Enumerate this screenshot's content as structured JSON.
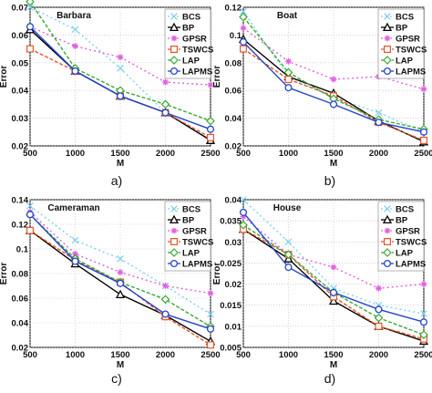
{
  "chart_data": [
    {
      "type": "line",
      "panel_label": "a)",
      "title": "Barbara",
      "xlabel": "M",
      "ylabel": "Error",
      "x": [
        500,
        1000,
        1500,
        2000,
        2500
      ],
      "xlim": [
        500,
        2500
      ],
      "ylim": [
        0.02,
        0.07
      ],
      "yticks": [
        "0.02",
        "0.03",
        "0.04",
        "0.05",
        "0.06",
        "0.07"
      ],
      "xticks": [
        "500",
        "1000",
        "1500",
        "2000",
        "2500"
      ],
      "grid": true,
      "legend_position": "top-right",
      "series": [
        {
          "name": "BCS",
          "color": "#7fd0ee",
          "dash": "2,3",
          "marker": "x",
          "values": [
            0.07,
            0.062,
            0.048,
            0.032,
            0.022
          ]
        },
        {
          "name": "BP",
          "color": "#000000",
          "dash": "",
          "marker": "triangle",
          "values": [
            0.062,
            0.047,
            0.038,
            0.032,
            0.022
          ]
        },
        {
          "name": "GPSR",
          "color": "#e060e0",
          "dash": "2,3",
          "marker": "star",
          "values": [
            0.063,
            0.056,
            0.052,
            0.043,
            0.042
          ]
        },
        {
          "name": "TSWCS",
          "color": "#e8552b",
          "dash": "4,2",
          "marker": "square",
          "values": [
            0.055,
            0.047,
            0.038,
            0.032,
            0.023
          ]
        },
        {
          "name": "LAP",
          "color": "#3aa832",
          "dash": "4,2",
          "marker": "diamond",
          "values": [
            0.072,
            0.048,
            0.04,
            0.035,
            0.029
          ]
        },
        {
          "name": "LAPMS",
          "color": "#2244cc",
          "dash": "",
          "marker": "circle",
          "values": [
            0.063,
            0.047,
            0.038,
            0.032,
            0.026
          ]
        }
      ]
    },
    {
      "type": "line",
      "panel_label": "b)",
      "title": "Boat",
      "xlabel": "M",
      "ylabel": "Error",
      "x": [
        500,
        1000,
        1500,
        2000,
        2500
      ],
      "xlim": [
        500,
        2500
      ],
      "ylim": [
        0.02,
        0.12
      ],
      "yticks": [
        "0.02",
        "0.04",
        "0.06",
        "0.08",
        "0.1",
        "0.12"
      ],
      "xticks": [
        "500",
        "1000",
        "1500",
        "2000",
        "2500"
      ],
      "grid": true,
      "legend_position": "top-right",
      "series": [
        {
          "name": "BCS",
          "color": "#7fd0ee",
          "dash": "2,3",
          "marker": "x",
          "values": [
            0.117,
            0.07,
            0.055,
            0.044,
            0.03
          ]
        },
        {
          "name": "BP",
          "color": "#000000",
          "dash": "",
          "marker": "triangle",
          "values": [
            0.097,
            0.07,
            0.058,
            0.038,
            0.023
          ]
        },
        {
          "name": "GPSR",
          "color": "#e060e0",
          "dash": "2,3",
          "marker": "star",
          "values": [
            0.105,
            0.081,
            0.068,
            0.07,
            0.061
          ]
        },
        {
          "name": "TSWCS",
          "color": "#e8552b",
          "dash": "4,2",
          "marker": "square",
          "values": [
            0.09,
            0.068,
            0.056,
            0.037,
            0.024
          ]
        },
        {
          "name": "LAP",
          "color": "#3aa832",
          "dash": "4,2",
          "marker": "diamond",
          "values": [
            0.113,
            0.073,
            0.054,
            0.039,
            0.032
          ]
        },
        {
          "name": "LAPMS",
          "color": "#2244cc",
          "dash": "",
          "marker": "circle",
          "values": [
            0.095,
            0.062,
            0.05,
            0.037,
            0.03
          ]
        }
      ]
    },
    {
      "type": "line",
      "panel_label": "c)",
      "title": "Cameraman",
      "xlabel": "M",
      "ylabel": "Error",
      "x": [
        500,
        1000,
        1500,
        2000,
        2500
      ],
      "xlim": [
        500,
        2500
      ],
      "ylim": [
        0.02,
        0.14
      ],
      "yticks": [
        "0.02",
        "0.04",
        "0.06",
        "0.08",
        "0.1",
        "0.12",
        "0.14"
      ],
      "xticks": [
        "500",
        "1000",
        "1500",
        "2000",
        "2500"
      ],
      "grid": true,
      "legend_position": "top-right",
      "series": [
        {
          "name": "BCS",
          "color": "#7fd0ee",
          "dash": "2,3",
          "marker": "x",
          "values": [
            0.135,
            0.107,
            0.092,
            0.07,
            0.047
          ]
        },
        {
          "name": "BP",
          "color": "#000000",
          "dash": "",
          "marker": "triangle",
          "values": [
            0.115,
            0.088,
            0.063,
            0.046,
            0.025
          ]
        },
        {
          "name": "GPSR",
          "color": "#e060e0",
          "dash": "2,3",
          "marker": "star",
          "values": [
            0.13,
            0.096,
            0.081,
            0.07,
            0.064
          ]
        },
        {
          "name": "TSWCS",
          "color": "#e8552b",
          "dash": "4,2",
          "marker": "square",
          "values": [
            0.115,
            0.091,
            0.073,
            0.045,
            0.022
          ]
        },
        {
          "name": "LAP",
          "color": "#3aa832",
          "dash": "4,2",
          "marker": "diamond",
          "values": [
            0.128,
            0.092,
            0.073,
            0.059,
            0.037
          ]
        },
        {
          "name": "LAPMS",
          "color": "#2244cc",
          "dash": "",
          "marker": "circle",
          "values": [
            0.128,
            0.09,
            0.072,
            0.047,
            0.035
          ]
        }
      ]
    },
    {
      "type": "line",
      "panel_label": "d)",
      "title": "House",
      "xlabel": "M",
      "ylabel": "Error",
      "x": [
        500,
        1000,
        1500,
        2000,
        2500
      ],
      "xlim": [
        500,
        2500
      ],
      "ylim": [
        0.005,
        0.04
      ],
      "yticks": [
        "0.005",
        "0.01",
        "0.015",
        "0.02",
        "0.025",
        "0.03",
        "0.035",
        "0.04"
      ],
      "xticks": [
        "500",
        "1000",
        "1500",
        "2000",
        "2500"
      ],
      "grid": true,
      "legend_position": "top-right",
      "series": [
        {
          "name": "BCS",
          "color": "#7fd0ee",
          "dash": "2,3",
          "marker": "x",
          "values": [
            0.04,
            0.03,
            0.019,
            0.015,
            0.013
          ]
        },
        {
          "name": "BP",
          "color": "#000000",
          "dash": "",
          "marker": "triangle",
          "values": [
            0.033,
            0.026,
            0.016,
            0.01,
            0.0065
          ]
        },
        {
          "name": "GPSR",
          "color": "#e060e0",
          "dash": "2,3",
          "marker": "star",
          "values": [
            0.036,
            0.027,
            0.024,
            0.019,
            0.02
          ]
        },
        {
          "name": "TSWCS",
          "color": "#e8552b",
          "dash": "4,2",
          "marker": "square",
          "values": [
            0.033,
            0.027,
            0.017,
            0.01,
            0.007
          ]
        },
        {
          "name": "LAP",
          "color": "#3aa832",
          "dash": "4,2",
          "marker": "diamond",
          "values": [
            0.034,
            0.027,
            0.018,
            0.012,
            0.008
          ]
        },
        {
          "name": "LAPMS",
          "color": "#2244cc",
          "dash": "",
          "marker": "circle",
          "values": [
            0.037,
            0.024,
            0.018,
            0.014,
            0.011
          ]
        }
      ]
    }
  ]
}
